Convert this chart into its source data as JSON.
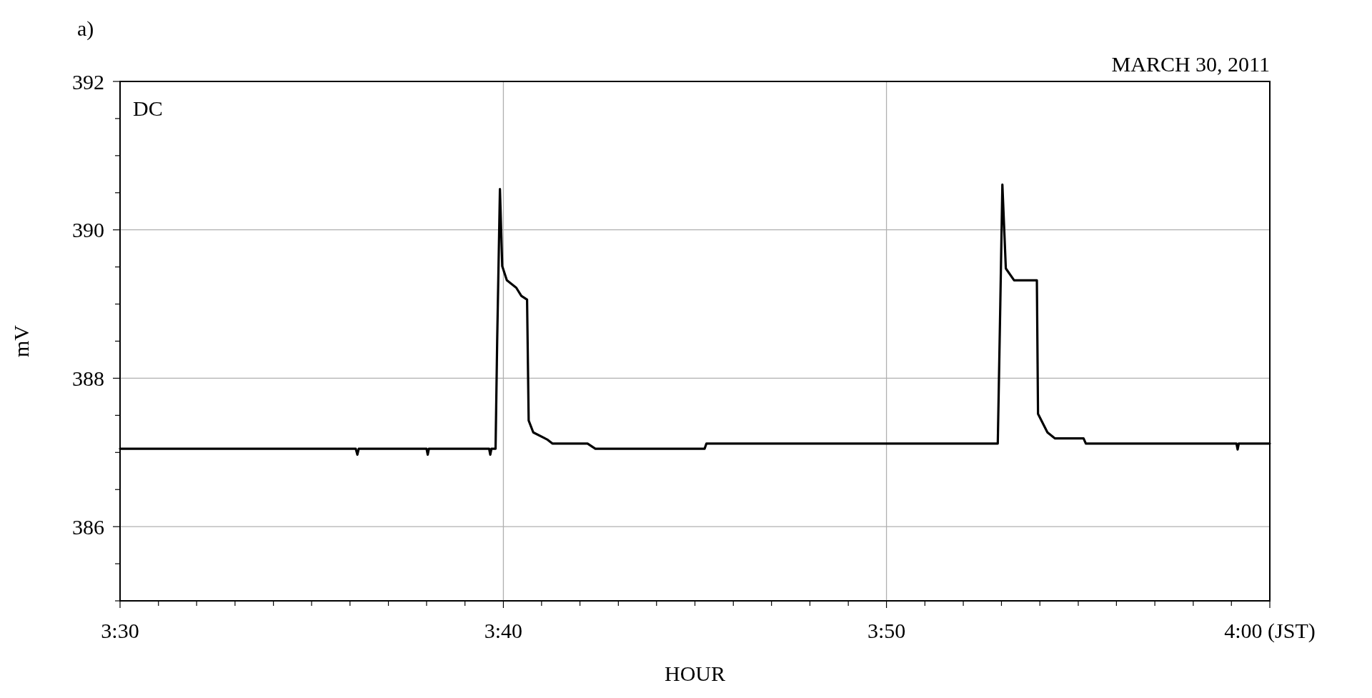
{
  "chart_data": {
    "type": "line",
    "title": "a)",
    "subtitle": "MARCH 30, 2011",
    "xlabel": "HOUR",
    "ylabel": "mV",
    "annotations": [
      "DC"
    ],
    "x": [
      3.5,
      3.6025,
      3.6032,
      3.6038,
      3.6333,
      3.6338,
      3.6343,
      3.6605,
      3.661,
      3.6615,
      3.6633,
      3.664,
      3.6652,
      3.6662,
      3.6682,
      3.6723,
      3.6745,
      3.677,
      3.6777,
      3.6797,
      3.686,
      3.688,
      3.7033,
      3.7067,
      3.7542,
      3.755,
      3.8817,
      3.8828,
      3.8837,
      3.8852,
      3.8888,
      3.8987,
      3.8992,
      3.9033,
      3.9065,
      3.919,
      3.92,
      3.9855,
      3.986,
      3.9865,
      4.0
    ],
    "series": [
      {
        "color": "#000000",
        "values": [
          387.05,
          387.05,
          386.97,
          387.05,
          387.05,
          386.97,
          387.05,
          387.05,
          386.97,
          387.05,
          387.05,
          388.5,
          390.55,
          389.51,
          389.32,
          389.22,
          389.11,
          389.06,
          387.43,
          387.27,
          387.17,
          387.12,
          387.12,
          387.05,
          387.05,
          387.12,
          387.12,
          389.0,
          390.61,
          389.48,
          389.32,
          389.32,
          387.52,
          387.27,
          387.19,
          387.19,
          387.12,
          387.12,
          387.04,
          387.12,
          387.12
        ]
      }
    ],
    "xlim": [
      3.5,
      4.0
    ],
    "xticks": [
      {
        "value": 3.5,
        "label": "3:30"
      },
      {
        "value": 3.5167,
        "label": null
      },
      {
        "value": 3.5333,
        "label": null
      },
      {
        "value": 3.55,
        "label": null
      },
      {
        "value": 3.5667,
        "label": null
      },
      {
        "value": 3.5833,
        "label": null
      },
      {
        "value": 3.6,
        "label": null
      },
      {
        "value": 3.6167,
        "label": null
      },
      {
        "value": 3.6333,
        "label": null
      },
      {
        "value": 3.65,
        "label": null
      },
      {
        "value": 3.6667,
        "label": "3:40"
      },
      {
        "value": 3.6833,
        "label": null
      },
      {
        "value": 3.7,
        "label": null
      },
      {
        "value": 3.7167,
        "label": null
      },
      {
        "value": 3.7333,
        "label": null
      },
      {
        "value": 3.75,
        "label": null
      },
      {
        "value": 3.7667,
        "label": null
      },
      {
        "value": 3.7833,
        "label": null
      },
      {
        "value": 3.8,
        "label": null
      },
      {
        "value": 3.8167,
        "label": null
      },
      {
        "value": 3.8333,
        "label": "3:50"
      },
      {
        "value": 3.85,
        "label": null
      },
      {
        "value": 3.8667,
        "label": null
      },
      {
        "value": 3.8833,
        "label": null
      },
      {
        "value": 3.9,
        "label": null
      },
      {
        "value": 3.9167,
        "label": null
      },
      {
        "value": 3.9333,
        "label": null
      },
      {
        "value": 3.95,
        "label": null
      },
      {
        "value": 3.9667,
        "label": null
      },
      {
        "value": 3.9833,
        "label": null
      },
      {
        "value": 4.0,
        "label": "4:00 (JST)"
      }
    ],
    "ylim": [
      385,
      392
    ],
    "yticks": [
      {
        "value": 385,
        "label": null
      },
      {
        "value": 385.5,
        "label": null
      },
      386,
      {
        "value": 386.5,
        "label": null
      },
      {
        "value": 387,
        "label": null
      },
      {
        "value": 387.5,
        "label": null
      },
      388,
      {
        "value": 388.5,
        "label": null
      },
      {
        "value": 389,
        "label": null
      },
      {
        "value": 389.5,
        "label": null
      },
      390,
      {
        "value": 390.5,
        "label": null
      },
      {
        "value": 391,
        "label": null
      },
      {
        "value": 391.5,
        "label": null
      },
      392
    ],
    "grid": true,
    "line_style": "solid",
    "marker": "none"
  }
}
